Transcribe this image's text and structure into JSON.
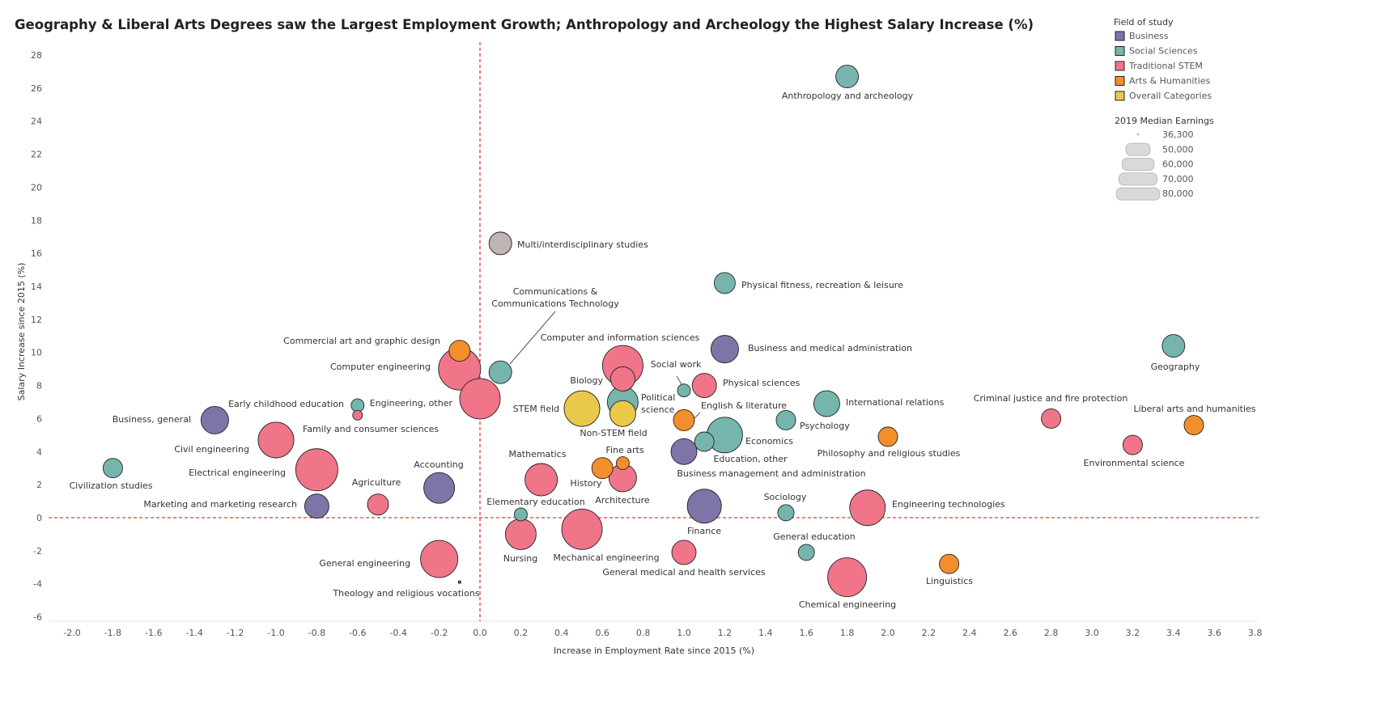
{
  "chart_data": {
    "type": "scatter",
    "title": "Geography & Liberal Arts Degrees saw the Largest Employment Growth; Anthropology and Archeology the Highest Salary Increase (%)",
    "xlabel": "Increase in Employment Rate since 2015 (%)",
    "ylabel": "Salary Increase since 2015 (%)",
    "xlim": [
      -2.0,
      3.8
    ],
    "ylim": [
      -6,
      28
    ],
    "xticks": [
      "-2.0",
      "-1.8",
      "-1.6",
      "-1.4",
      "-1.2",
      "-1.0",
      "-0.8",
      "-0.6",
      "-0.4",
      "-0.2",
      "0.0",
      "0.2",
      "0.4",
      "0.6",
      "0.8",
      "1.0",
      "1.2",
      "1.4",
      "1.6",
      "1.8",
      "2.0",
      "2.2",
      "2.4",
      "2.6",
      "2.8",
      "3.0",
      "3.2",
      "3.4",
      "3.6",
      "3.8"
    ],
    "yticks": [
      "-6",
      "-4",
      "-2",
      "0",
      "2",
      "4",
      "6",
      "8",
      "10",
      "12",
      "14",
      "16",
      "18",
      "20",
      "22",
      "24",
      "26",
      "28"
    ],
    "grid": false,
    "reference_lines": {
      "x": 0,
      "y": 0,
      "color": "#e03c3c",
      "style": "dashed"
    },
    "legend": {
      "title": "Field of study",
      "placement": "top-right",
      "items": [
        {
          "name": "Business",
          "color": "#7f74a8"
        },
        {
          "name": "Social Sciences",
          "color": "#76b5ae"
        },
        {
          "name": "Traditional STEM",
          "color": "#f07589"
        },
        {
          "name": "Arts & Humanities",
          "color": "#f28e2b"
        },
        {
          "name": "Overall Categories",
          "color": "#eac94a"
        }
      ],
      "other_color": "#c0b5b5"
    },
    "size_legend": {
      "title": "2019 Median Earnings",
      "items": [
        "36,300",
        "50,000",
        "60,000",
        "70,000",
        "80,000"
      ],
      "values": [
        36300,
        50000,
        60000,
        70000,
        80000
      ]
    },
    "points": [
      {
        "label": "Anthropology and archeology",
        "x": 1.8,
        "y": 26.7,
        "earnings": 48200,
        "category": "Social Sciences"
      },
      {
        "label": "Multi/interdisciplinary studies",
        "x": 0.1,
        "y": 16.6,
        "earnings": 48200,
        "category": "Other"
      },
      {
        "label": "Physical fitness, recreation & leisure",
        "x": 1.2,
        "y": 14.2,
        "earnings": 46600,
        "category": "Social Sciences"
      },
      {
        "label": "Geography",
        "x": 3.4,
        "y": 10.4,
        "earnings": 48200,
        "category": "Social Sciences"
      },
      {
        "label": "Business and medical administration",
        "x": 1.2,
        "y": 10.2,
        "earnings": 53900,
        "category": "Business"
      },
      {
        "label": "Communications & Communications Technology",
        "x": 0.1,
        "y": 8.8,
        "earnings": 48200,
        "category": "Social Sciences"
      },
      {
        "label": "Commercial art and graphic design",
        "x": -0.1,
        "y": 10.1,
        "earnings": 46600,
        "category": "Arts & Humanities"
      },
      {
        "label": "Computer engineering",
        "x": -0.1,
        "y": 9.0,
        "earnings": 77500,
        "category": "Traditional STEM"
      },
      {
        "label": "Engineering, other",
        "x": 0.0,
        "y": 7.2,
        "earnings": 74400,
        "category": "Traditional STEM"
      },
      {
        "label": "Early childhood education",
        "x": -0.6,
        "y": 6.8,
        "earnings": 40200,
        "category": "Social Sciences"
      },
      {
        "label": "Family and consumer sciences",
        "x": -0.6,
        "y": 6.2,
        "earnings": 38500,
        "category": "Traditional STEM"
      },
      {
        "label": "Business, general",
        "x": -1.3,
        "y": 5.9,
        "earnings": 53900,
        "category": "Business"
      },
      {
        "label": "Civil engineering",
        "x": -1.0,
        "y": 4.7,
        "earnings": 65800,
        "category": "Traditional STEM"
      },
      {
        "label": "Electrical engineering",
        "x": -0.8,
        "y": 2.9,
        "earnings": 77500,
        "category": "Traditional STEM"
      },
      {
        "label": "Civilization studies",
        "x": -1.8,
        "y": 3.0,
        "earnings": 45100,
        "category": "Social Sciences"
      },
      {
        "label": "Marketing and marketing research",
        "x": -0.8,
        "y": 0.7,
        "earnings": 50000,
        "category": "Business"
      },
      {
        "label": "Agriculture",
        "x": -0.5,
        "y": 0.8,
        "earnings": 46600,
        "category": "Traditional STEM"
      },
      {
        "label": "Accounting",
        "x": -0.2,
        "y": 1.8,
        "earnings": 58300,
        "category": "Business"
      },
      {
        "label": "General engineering",
        "x": -0.2,
        "y": -2.5,
        "earnings": 68500,
        "category": "Traditional STEM"
      },
      {
        "label": "Theology and religious vocations",
        "x": -0.1,
        "y": -3.9,
        "earnings": 36300,
        "category": "Arts & Humanities"
      },
      {
        "label": "Computer and information sciences",
        "x": 0.7,
        "y": 9.2,
        "earnings": 74400,
        "category": "Traditional STEM"
      },
      {
        "label": "Biology",
        "x": 0.7,
        "y": 8.4,
        "earnings": 50000,
        "category": "Traditional STEM"
      },
      {
        "label": "Political science",
        "x": 0.7,
        "y": 7.0,
        "earnings": 58300,
        "category": "Social Sciences"
      },
      {
        "label": "Non-STEM field",
        "x": 0.7,
        "y": 6.3,
        "earnings": 51900,
        "category": "Overall Categories"
      },
      {
        "label": "STEM field",
        "x": 0.5,
        "y": 6.6,
        "earnings": 65800,
        "category": "Overall Categories"
      },
      {
        "label": "Social work",
        "x": 1.0,
        "y": 7.7,
        "earnings": 40200,
        "category": "Social Sciences"
      },
      {
        "label": "Physical sciences",
        "x": 1.1,
        "y": 8.0,
        "earnings": 50000,
        "category": "Traditional STEM"
      },
      {
        "label": "English & literature",
        "x": 1.0,
        "y": 5.9,
        "earnings": 46600,
        "category": "Arts & Humanities"
      },
      {
        "label": "Economics",
        "x": 1.2,
        "y": 5.0,
        "earnings": 65800,
        "category": "Social Sciences"
      },
      {
        "label": "Education, other",
        "x": 1.1,
        "y": 4.6,
        "earnings": 45100,
        "category": "Social Sciences"
      },
      {
        "label": "Business management and administration",
        "x": 1.0,
        "y": 4.0,
        "earnings": 51900,
        "category": "Business"
      },
      {
        "label": "Psychology",
        "x": 1.5,
        "y": 5.9,
        "earnings": 45100,
        "category": "Social Sciences"
      },
      {
        "label": "International relations",
        "x": 1.7,
        "y": 6.9,
        "earnings": 51900,
        "category": "Social Sciences"
      },
      {
        "label": "Philosophy and religious studies",
        "x": 2.0,
        "y": 4.9,
        "earnings": 45100,
        "category": "Arts & Humanities"
      },
      {
        "label": "Criminal justice and fire protection",
        "x": 2.8,
        "y": 6.0,
        "earnings": 45100,
        "category": "Traditional STEM"
      },
      {
        "label": "Liberal arts and humanities",
        "x": 3.5,
        "y": 5.6,
        "earnings": 45100,
        "category": "Arts & Humanities"
      },
      {
        "label": "Environmental science",
        "x": 3.2,
        "y": 4.4,
        "earnings": 45100,
        "category": "Traditional STEM"
      },
      {
        "label": "Mathematics",
        "x": 0.3,
        "y": 2.3,
        "earnings": 60700,
        "category": "Traditional STEM"
      },
      {
        "label": "Fine arts",
        "x": 0.7,
        "y": 3.3,
        "earnings": 40200,
        "category": "Arts & Humanities"
      },
      {
        "label": "History",
        "x": 0.6,
        "y": 3.0,
        "earnings": 46600,
        "category": "Arts & Humanities"
      },
      {
        "label": "Architecture",
        "x": 0.7,
        "y": 2.4,
        "earnings": 53900,
        "category": "Traditional STEM"
      },
      {
        "label": "Elementary education",
        "x": 0.2,
        "y": 0.2,
        "earnings": 40200,
        "category": "Social Sciences"
      },
      {
        "label": "Nursing",
        "x": 0.2,
        "y": -1.0,
        "earnings": 58300,
        "category": "Traditional STEM"
      },
      {
        "label": "Mechanical engineering",
        "x": 0.5,
        "y": -0.7,
        "earnings": 74400,
        "category": "Traditional STEM"
      },
      {
        "label": "Finance",
        "x": 1.1,
        "y": 0.7,
        "earnings": 63200,
        "category": "Business"
      },
      {
        "label": "General medical and health services",
        "x": 1.0,
        "y": -2.1,
        "earnings": 50000,
        "category": "Traditional STEM"
      },
      {
        "label": "Sociology",
        "x": 1.5,
        "y": 0.3,
        "earnings": 42400,
        "category": "Social Sciences"
      },
      {
        "label": "General education",
        "x": 1.6,
        "y": -2.1,
        "earnings": 42400,
        "category": "Social Sciences"
      },
      {
        "label": "Engineering technologies",
        "x": 1.9,
        "y": 0.6,
        "earnings": 65800,
        "category": "Traditional STEM"
      },
      {
        "label": "Linguistics",
        "x": 2.3,
        "y": -2.8,
        "earnings": 45100,
        "category": "Arts & Humanities"
      },
      {
        "label": "Chemical engineering",
        "x": 1.8,
        "y": -3.6,
        "earnings": 71400,
        "category": "Traditional STEM"
      }
    ]
  }
}
